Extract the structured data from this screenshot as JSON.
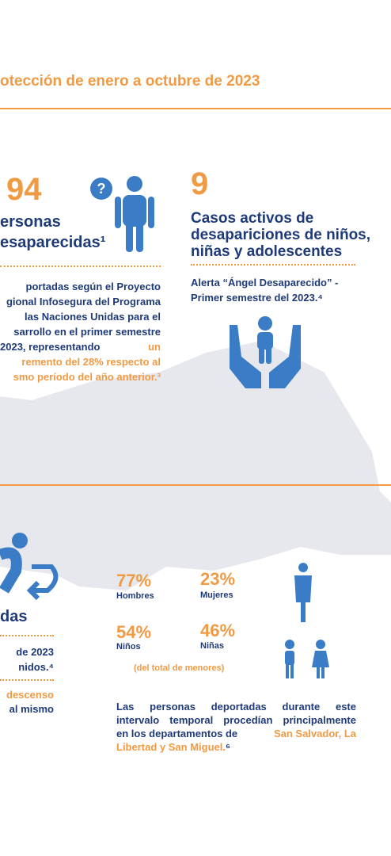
{
  "header": {
    "title": "otección de enero a octubre de 2023"
  },
  "left": {
    "number": "94",
    "label_lines": [
      "ersonas",
      "esaparecidas¹"
    ],
    "paragraph": [
      "portadas según el Proyecto",
      "gional Infosegura del Programa",
      "las Naciones Unidas para el",
      "sarrollo en el primer semestre",
      "2023,   representando",
      {
        "plain": "",
        "orange": "un"
      },
      "remento del 28% respecto al",
      "smo período del año anterior.³"
    ]
  },
  "right": {
    "number": "9",
    "label_lines": [
      "Casos activos de",
      "desapariciones de niños,",
      "niñas y adolescentes"
    ],
    "note_lines": [
      "Alerta “Ángel Desaparecido” -",
      "Primer semestre del 2023.⁴"
    ]
  },
  "bottom_left": {
    "label": "das",
    "lines": [
      "de 2023",
      "nidos.⁴"
    ],
    "orange_lines": [
      "descenso"
    ],
    "navy_lines": [
      "al mismo"
    ]
  },
  "stats": [
    {
      "value": "77%",
      "label": "Hombres"
    },
    {
      "value": "23%",
      "label": "Mujeres"
    },
    {
      "value": "54%",
      "label": "Niños"
    },
    {
      "value": "46%",
      "label": "Niñas"
    }
  ],
  "stats_note": "(del total de menores)",
  "summary": {
    "lines": [
      "Las personas deportadas durante este",
      "intervalo temporal procedían principalmente"
    ],
    "line3_plain": "en los departamentos de ",
    "line3_orange": "San Salvador, La",
    "line4_orange": "Libertad y San Miguel.",
    "line4_plain": "⁶"
  }
}
